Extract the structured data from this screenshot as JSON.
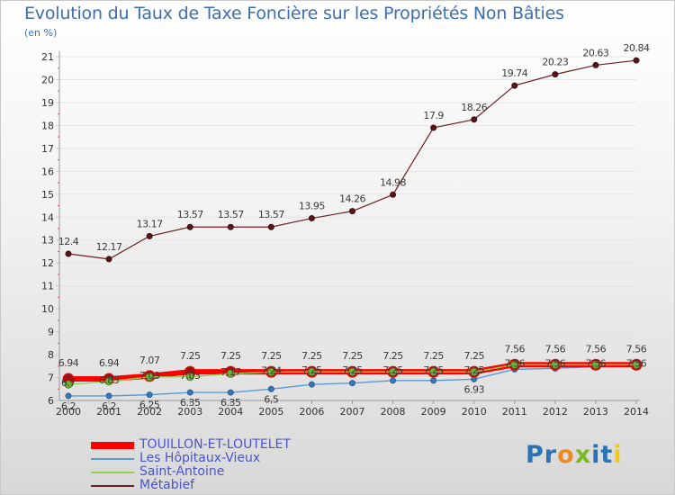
{
  "chart_data": {
    "type": "line",
    "title": "Evolution du Taux de Taxe Foncière sur les Propriétés Non Bâties",
    "ylabel": "(en %)",
    "xlabel": "",
    "ylim": [
      6,
      21
    ],
    "yticks": [
      "6",
      "7",
      "8",
      "9",
      "10",
      "11",
      "12",
      "13",
      "14",
      "15",
      "16",
      "17",
      "18",
      "19",
      "20",
      "21"
    ],
    "x": [
      "2000",
      "2001",
      "2002",
      "2003",
      "2004",
      "2005",
      "2006",
      "2007",
      "2008",
      "2009",
      "2010",
      "2011",
      "2012",
      "2013",
      "2014"
    ],
    "series": [
      {
        "name": "TOUILLON-ET-LOUTELET",
        "color": "#ff0000",
        "values": [
          6.94,
          6.94,
          7.07,
          7.25,
          7.25,
          7.25,
          7.25,
          7.25,
          7.25,
          7.25,
          7.25,
          7.56,
          7.56,
          7.56,
          7.56
        ],
        "labels": [
          "6.94",
          "6.94",
          "7.07",
          "7.25",
          "7.25",
          "7.25",
          "7.25",
          "7.25",
          "7.25",
          "7.25",
          "7.25",
          "7.56",
          "7.56",
          "7.56",
          "7.56"
        ]
      },
      {
        "name": "Les Hôpitaux-Vieux",
        "color": "#5b9bd5",
        "values": [
          6.2,
          6.2,
          6.25,
          6.35,
          6.35,
          6.5,
          6.7,
          6.76,
          6.87,
          6.87,
          6.93,
          7.36,
          7.4,
          7.48,
          7.55
        ],
        "labels": [
          "6.2",
          "6.2",
          "6.25",
          "6.35",
          "6.35",
          "6.5",
          "",
          "",
          "",
          "",
          "6.93",
          "",
          "",
          "",
          ""
        ]
      },
      {
        "name": "Saint-Antoine",
        "color": "#8fd14f",
        "values": [
          6.7,
          6.83,
          7.03,
          7.03,
          7.17,
          7.24,
          7.25,
          7.25,
          7.25,
          7.25,
          7.25,
          7.56,
          7.56,
          7.56,
          7.56
        ],
        "labels": [
          "6.7",
          "6.83",
          "7.03",
          "7.03",
          "7.17",
          "7.24",
          "7.25",
          "7.25",
          "7.25",
          "7.25",
          "7.25",
          "7.56",
          "7.56",
          "7.56",
          "7.56"
        ]
      },
      {
        "name": "Métabief",
        "color": "#6b1f1f",
        "values": [
          12.4,
          12.17,
          13.17,
          13.57,
          13.57,
          13.57,
          13.95,
          14.26,
          14.98,
          17.9,
          18.26,
          19.74,
          20.23,
          20.63,
          20.84
        ],
        "labels": [
          "12.4",
          "12.17",
          "13.17",
          "13.57",
          "13.57",
          "13.57",
          "13.95",
          "14.26",
          "14.98",
          "17.9",
          "18.26",
          "19.74",
          "20.23",
          "20.63",
          "20.84"
        ]
      }
    ],
    "legend_position": "bottom-left"
  },
  "logo": {
    "letters": [
      "P",
      "r",
      "o",
      "x",
      "i",
      "t",
      "i"
    ],
    "colors": [
      "#2a72b8",
      "#2a72b8",
      "#f08a1c",
      "#7cba28",
      "#2a72b8",
      "#2a72b8",
      "#f0c81c"
    ]
  }
}
